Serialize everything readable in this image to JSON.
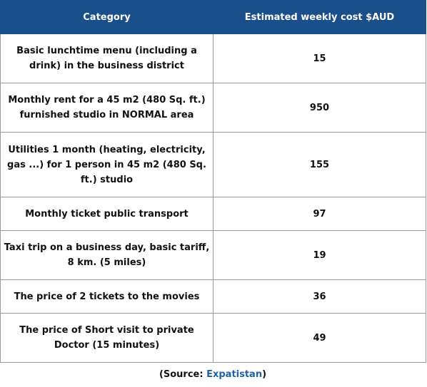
{
  "table": {
    "headers": [
      "Category",
      "Estimated weekly cost $AUD"
    ],
    "rows": [
      {
        "category": "Basic lunchtime menu (including a drink) in the business district",
        "cost": "15"
      },
      {
        "category": "Monthly rent for a 45 m2 (480 Sq. ft.) furnished studio in NORMAL area",
        "cost": "950"
      },
      {
        "category": "Utilities 1 month (heating, electricity, gas ...) for 1 person in 45 m2 (480 Sq. ft.) studio",
        "cost": "155"
      },
      {
        "category": "Monthly ticket public transport",
        "cost": "97"
      },
      {
        "category": "Taxi trip on a business day, basic tariff, 8 km. (5 miles)",
        "cost": "19"
      },
      {
        "category": "The price of 2 tickets to the movies",
        "cost": "36"
      },
      {
        "category": "The price of Short visit to private Doctor (15 minutes)",
        "cost": "49"
      }
    ]
  },
  "source": {
    "prefix": "(Source: ",
    "link": "Expatistan",
    "suffix": ")"
  },
  "colors": {
    "header_bg": "#1a4f8b",
    "link": "#1f62a6"
  }
}
